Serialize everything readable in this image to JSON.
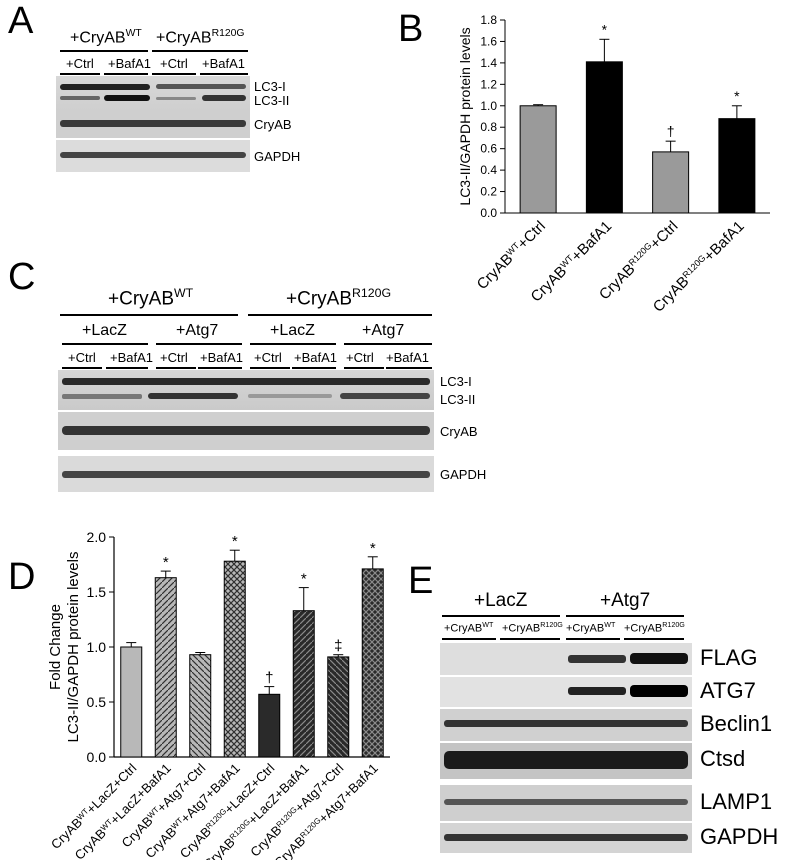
{
  "panels": {
    "A": "A",
    "B": "B",
    "C": "C",
    "D": "D",
    "E": "E"
  },
  "panelA": {
    "groups": [
      "+CryAB",
      "+CryAB"
    ],
    "group_sup": [
      "WT",
      "R120G"
    ],
    "treatments": [
      "+Ctrl",
      "+BafA1",
      "+Ctrl",
      "+BafA1"
    ],
    "rows": [
      "LC3-I",
      "LC3-II",
      "CryAB",
      "GAPDH"
    ]
  },
  "panelC": {
    "groups": [
      "+CryAB",
      "+CryAB"
    ],
    "group_sup": [
      "WT",
      "R120G"
    ],
    "vectors": [
      "+LacZ",
      "+Atg7",
      "+LacZ",
      "+Atg7"
    ],
    "treatments": [
      "+Ctrl",
      "+BafA1",
      "+Ctrl",
      "+BafA1",
      "+Ctrl",
      "+BafA1",
      "+Ctrl",
      "+BafA1"
    ],
    "rows": [
      "LC3-I",
      "LC3-II",
      "CryAB",
      "GAPDH"
    ]
  },
  "panelE": {
    "vectors": [
      "+LacZ",
      "+Atg7"
    ],
    "groups": [
      "+CryAB",
      "+CryAB",
      "+CryAB",
      "+CryAB"
    ],
    "group_sup": [
      "WT",
      "R120G",
      "WT",
      "R120G"
    ],
    "rows": [
      "FLAG",
      "ATG7",
      "Beclin1",
      "Ctsd",
      "LAMP1",
      "GAPDH"
    ]
  },
  "chart_data": [
    {
      "panel": "B",
      "type": "bar",
      "ylabel": "LC3-II/GAPDH protein levels",
      "ylim": [
        0,
        1.8
      ],
      "yticks": [
        "0.0",
        "0.2",
        "0.4",
        "0.6",
        "0.8",
        "1.0",
        "1.2",
        "1.4",
        "1.6",
        "1.8"
      ],
      "categories": [
        {
          "base": "CryAB",
          "sup": "WT",
          "suffix": "+Ctrl"
        },
        {
          "base": "CryAB",
          "sup": "WT",
          "suffix": "+BafA1"
        },
        {
          "base": "CryAB",
          "sup": "R120G",
          "suffix": "+Ctrl"
        },
        {
          "base": "CryAB",
          "sup": "R120G",
          "suffix": "+BafA1"
        }
      ],
      "values": [
        1.0,
        1.41,
        0.57,
        0.88
      ],
      "errors": [
        0.01,
        0.21,
        0.1,
        0.12
      ],
      "colors": [
        "#9a9a9a",
        "#000000",
        "#9a9a9a",
        "#000000"
      ],
      "annotations": [
        "",
        "*",
        "†",
        "*"
      ]
    },
    {
      "panel": "D",
      "type": "bar",
      "ylabel": [
        "Fold Change",
        "LC3-II/GAPDH protein levels"
      ],
      "ylim": [
        0,
        2.0
      ],
      "yticks": [
        "0.0",
        "0.5",
        "1.0",
        "1.5",
        "2.0"
      ],
      "categories": [
        {
          "base": "CryAB",
          "sup": "WT",
          "suffix": "+LacZ+Ctrl"
        },
        {
          "base": "CryAB",
          "sup": "WT",
          "suffix": "+LacZ+BafA1"
        },
        {
          "base": "CryAB",
          "sup": "WT",
          "suffix": "+Atg7+Ctrl"
        },
        {
          "base": "CryAB",
          "sup": "WT",
          "suffix": "+Atg7+BafA1"
        },
        {
          "base": "CryAB",
          "sup": "R120G",
          "suffix": "+LacZ+Ctrl"
        },
        {
          "base": "CryAB",
          "sup": "R120G",
          "suffix": "+LacZ+BafA1"
        },
        {
          "base": "CryAB",
          "sup": "R120G",
          "suffix": "+Atg7+Ctrl"
        },
        {
          "base": "CryAB",
          "sup": "R120G",
          "suffix": "+Atg7+BafA1"
        }
      ],
      "values": [
        1.0,
        1.63,
        0.93,
        1.78,
        0.57,
        1.33,
        0.91,
        1.71
      ],
      "errors": [
        0.04,
        0.06,
        0.02,
        0.1,
        0.07,
        0.21,
        0.02,
        0.11
      ],
      "patterns": [
        "solid-light",
        "diag-light",
        "diag-light-rev",
        "cross-light",
        "solid-dark",
        "diag-dark",
        "diag-dark-rev",
        "cross-dark"
      ],
      "annotations": [
        "",
        "*",
        "",
        "*",
        "†",
        "*",
        "‡",
        "*"
      ]
    }
  ]
}
